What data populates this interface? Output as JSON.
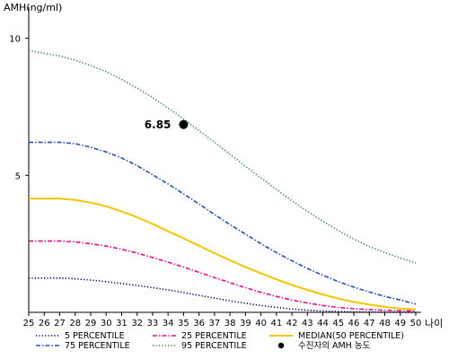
{
  "chart_data": {
    "type": "line",
    "ylabel": "AMH(ng/ml)",
    "xlabel": "나이",
    "xlim": [
      25,
      50
    ],
    "ylim": [
      0,
      11
    ],
    "x_ticks": [
      25,
      26,
      27,
      28,
      29,
      30,
      31,
      32,
      33,
      34,
      35,
      36,
      37,
      38,
      39,
      40,
      41,
      42,
      43,
      44,
      45,
      46,
      47,
      48,
      49,
      50
    ],
    "y_ticks": [
      5,
      10
    ],
    "x": [
      25,
      26,
      27,
      28,
      29,
      30,
      31,
      32,
      33,
      34,
      35,
      36,
      37,
      38,
      39,
      40,
      41,
      42,
      43,
      44,
      45,
      46,
      47,
      48,
      49,
      50
    ],
    "series": [
      {
        "name": "5 PERCENTILE",
        "color": "#000066",
        "style": "dotted",
        "values": [
          1.25,
          1.25,
          1.25,
          1.22,
          1.18,
          1.12,
          1.05,
          0.98,
          0.9,
          0.82,
          0.72,
          0.62,
          0.52,
          0.42,
          0.33,
          0.25,
          0.18,
          0.12,
          0.08,
          0.05,
          0.03,
          0.02,
          0.01,
          0.01,
          0.0,
          0.0
        ]
      },
      {
        "name": "25 PERCENTILE",
        "color": "#e0108c",
        "style": "dashdot",
        "values": [
          2.6,
          2.6,
          2.6,
          2.57,
          2.5,
          2.42,
          2.3,
          2.16,
          2.0,
          1.83,
          1.65,
          1.46,
          1.27,
          1.08,
          0.9,
          0.73,
          0.58,
          0.45,
          0.34,
          0.25,
          0.18,
          0.13,
          0.1,
          0.08,
          0.06,
          0.05
        ]
      },
      {
        "name": "MEDIAN(50 PERCENTILE)",
        "color": "#f2c500",
        "style": "solid",
        "values": [
          4.15,
          4.15,
          4.15,
          4.1,
          4.0,
          3.87,
          3.68,
          3.47,
          3.22,
          2.96,
          2.7,
          2.43,
          2.16,
          1.9,
          1.65,
          1.42,
          1.2,
          1.0,
          0.82,
          0.65,
          0.5,
          0.38,
          0.28,
          0.2,
          0.14,
          0.1
        ]
      },
      {
        "name": "75 PERCENTILE",
        "color": "#2a50b8",
        "style": "dashdot",
        "values": [
          6.2,
          6.2,
          6.2,
          6.15,
          6.02,
          5.85,
          5.63,
          5.35,
          5.02,
          4.68,
          4.32,
          3.95,
          3.57,
          3.2,
          2.85,
          2.5,
          2.18,
          1.88,
          1.6,
          1.35,
          1.12,
          0.92,
          0.74,
          0.58,
          0.45,
          0.3
        ]
      },
      {
        "name": "95 PERCENTILE",
        "color": "#2e7d4f",
        "style": "dotted",
        "values": [
          9.55,
          9.45,
          9.35,
          9.2,
          9.0,
          8.78,
          8.5,
          8.18,
          7.83,
          7.45,
          7.05,
          6.63,
          6.2,
          5.77,
          5.33,
          4.9,
          4.48,
          4.07,
          3.68,
          3.32,
          2.98,
          2.67,
          2.4,
          2.18,
          1.98,
          1.8
        ]
      }
    ],
    "highlight_point": {
      "legend": "수진자의 AMH 농도",
      "x": 35,
      "y": 6.85,
      "label": "6.85",
      "color": "#000000"
    },
    "legend_placement": "bottom",
    "grid": false
  }
}
